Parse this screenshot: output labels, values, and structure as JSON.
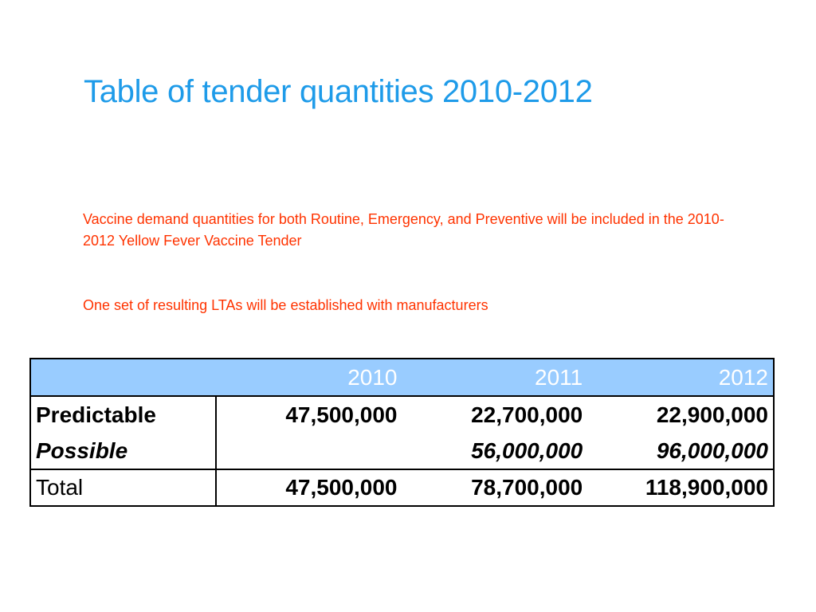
{
  "title": "Table of tender quantities 2010-2012",
  "notes": [
    "Vaccine demand quantities for both Routine, Emergency, and Preventive will be included in the 2010-2012 Yellow Fever Vaccine Tender",
    "One set of resulting LTAs will be established with manufacturers"
  ],
  "colors": {
    "title": "#1e9be9",
    "note": "#ff3300",
    "header_bg": "#99ccff"
  },
  "table": {
    "header": {
      "label": "",
      "years": [
        "2010",
        "2011",
        "2012"
      ]
    },
    "rows": [
      {
        "label": "Predictable",
        "values": [
          "47,500,000",
          "22,700,000",
          "22,900,000"
        ]
      },
      {
        "label": "Possible",
        "values": [
          "",
          "56,000,000",
          "96,000,000"
        ]
      }
    ],
    "total": {
      "label": "Total",
      "values": [
        "47,500,000",
        "78,700,000",
        "118,900,000"
      ]
    }
  }
}
